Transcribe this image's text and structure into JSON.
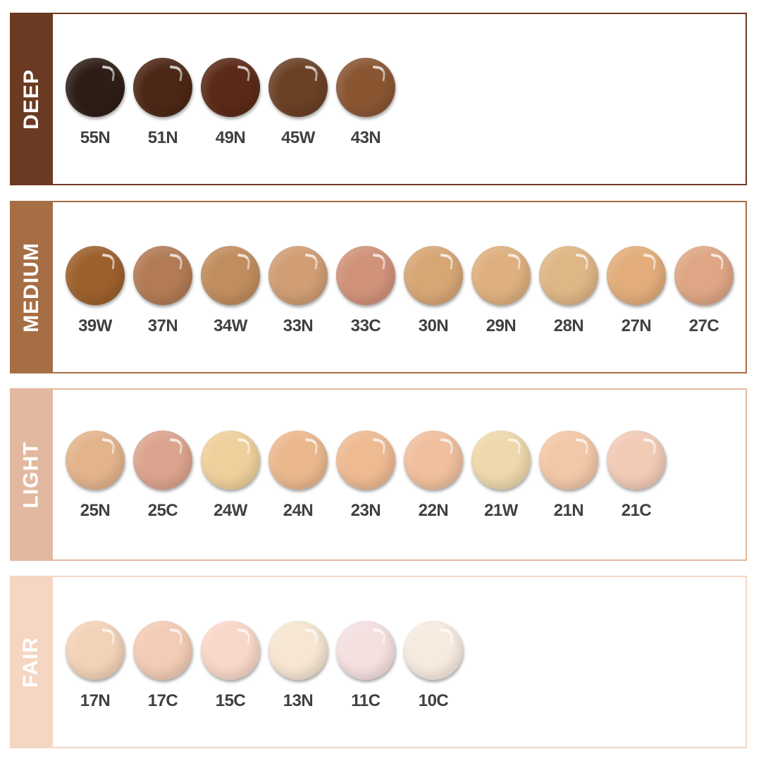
{
  "groups": [
    {
      "name": "DEEP",
      "color": "#6b3a22",
      "shades": [
        {
          "code": "55N",
          "color": "#2e1d16"
        },
        {
          "code": "51N",
          "color": "#4c2716"
        },
        {
          "code": "49N",
          "color": "#5b2a18"
        },
        {
          "code": "45W",
          "color": "#6b4025"
        },
        {
          "code": "43N",
          "color": "#8a5632"
        }
      ]
    },
    {
      "name": "MEDIUM",
      "color": "#a66e45",
      "shades": [
        {
          "code": "39W",
          "color": "#9c602c"
        },
        {
          "code": "37N",
          "color": "#b27b55"
        },
        {
          "code": "34W",
          "color": "#c08d5e"
        },
        {
          "code": "33N",
          "color": "#d09d74"
        },
        {
          "code": "33C",
          "color": "#d1927a"
        },
        {
          "code": "30N",
          "color": "#d7a675"
        },
        {
          "code": "29N",
          "color": "#deb07f"
        },
        {
          "code": "28N",
          "color": "#dfb686"
        },
        {
          "code": "27N",
          "color": "#e2ad7a"
        },
        {
          "code": "27C",
          "color": "#dea684"
        }
      ]
    },
    {
      "name": "LIGHT",
      "color": "#e2b9a0",
      "shades": [
        {
          "code": "25N",
          "color": "#e3b48c"
        },
        {
          "code": "25C",
          "color": "#dca48e"
        },
        {
          "code": "24W",
          "color": "#efd09c"
        },
        {
          "code": "24N",
          "color": "#ebb88e"
        },
        {
          "code": "23N",
          "color": "#eeba92"
        },
        {
          "code": "22N",
          "color": "#f0c09e"
        },
        {
          "code": "21W",
          "color": "#eed8ac"
        },
        {
          "code": "21N",
          "color": "#f3c8a8"
        },
        {
          "code": "21C",
          "color": "#f2cbb7"
        }
      ]
    },
    {
      "name": "FAIR",
      "color": "#f5d6c2",
      "shades": [
        {
          "code": "17N",
          "color": "#f3d3b8"
        },
        {
          "code": "17C",
          "color": "#f3ccb5"
        },
        {
          "code": "15C",
          "color": "#f8d8c8"
        },
        {
          "code": "13N",
          "color": "#f6e6d2"
        },
        {
          "code": "11C",
          "color": "#f5e0e0"
        },
        {
          "code": "10C",
          "color": "#f7ebe0"
        }
      ]
    }
  ]
}
